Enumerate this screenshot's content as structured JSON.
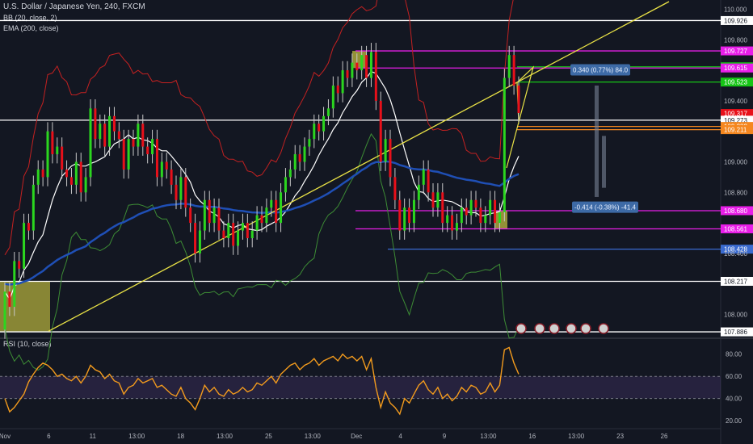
{
  "header": {
    "title": "U.S. Dollar / Japanese Yen, 240, FXCM",
    "bb_label": "BB (20, close, 2)",
    "ema_label": "EMA (200, close)",
    "rsi_label": "RSI (10, close)"
  },
  "colors": {
    "background": "#131722",
    "bull": "#2bd61f",
    "bear": "#e8101a",
    "bb_upper": "#c42121",
    "bb_lower": "#3d8c35",
    "bb_basis": "#ffffff",
    "ema": "#1f4fb5",
    "trend": "#e9e246",
    "magenta": "#e81ee8",
    "green_level": "#16c516",
    "orange_level": "#f5871f",
    "white_level": "#ffffff",
    "blue_level": "#3a6bd0",
    "rsi": "#f39b1d"
  },
  "chart_data": {
    "type": "candlestick",
    "symbol": "U.S. Dollar / Japanese Yen",
    "interval": "240",
    "source": "FXCM",
    "ylim": [
      107.86,
      110.05
    ],
    "price_ticks": [
      {
        "v": 110.0,
        "label": "110.000",
        "style": "plain"
      },
      {
        "v": 109.926,
        "label": "109.926",
        "style": "white"
      },
      {
        "v": 109.8,
        "label": "109.800",
        "style": "plain"
      },
      {
        "v": 109.727,
        "label": "109.727",
        "style": "magenta"
      },
      {
        "v": 109.623,
        "label": "109.623",
        "style": "green"
      },
      {
        "v": 109.615,
        "label": "109.615",
        "style": "magenta"
      },
      {
        "v": 109.523,
        "label": "109.523",
        "style": "green"
      },
      {
        "v": 109.4,
        "label": "109.400",
        "style": "plain"
      },
      {
        "v": 109.317,
        "label": "109.317",
        "style": "red"
      },
      {
        "v": 109.273,
        "label": "109.273",
        "style": "white"
      },
      {
        "v": 109.232,
        "label": "109.232",
        "style": "orange"
      },
      {
        "v": 109.211,
        "label": "109.211",
        "style": "orange"
      },
      {
        "v": 109.0,
        "label": "109.000",
        "style": "plain"
      },
      {
        "v": 108.8,
        "label": "108.800",
        "style": "plain"
      },
      {
        "v": 108.68,
        "label": "108.680",
        "style": "magenta"
      },
      {
        "v": 108.561,
        "label": "108.561",
        "style": "magenta"
      },
      {
        "v": 108.428,
        "label": "108.428",
        "style": "blue"
      },
      {
        "v": 108.4,
        "label": "108.400",
        "style": "plain"
      },
      {
        "v": 108.217,
        "label": "108.217",
        "style": "white"
      },
      {
        "v": 108.0,
        "label": "108.000",
        "style": "plain"
      },
      {
        "v": 107.886,
        "label": "107.886",
        "style": "white"
      }
    ],
    "x_ticks": [
      "Nov",
      "6",
      "11",
      "13:00",
      "18",
      "13:00",
      "25",
      "13:00",
      "Dec",
      "4",
      "9",
      "13:00",
      "16",
      "13:00",
      "23",
      "26"
    ],
    "horizontal_levels": [
      {
        "v": 109.926,
        "color": "white"
      },
      {
        "v": 109.727,
        "color": "magenta"
      },
      {
        "v": 109.623,
        "color": "green"
      },
      {
        "v": 109.615,
        "color": "magenta"
      },
      {
        "v": 109.523,
        "color": "green"
      },
      {
        "v": 109.273,
        "color": "white"
      },
      {
        "v": 109.232,
        "color": "orange"
      },
      {
        "v": 109.211,
        "color": "orange"
      },
      {
        "v": 108.68,
        "color": "magenta"
      },
      {
        "v": 108.561,
        "color": "magenta"
      },
      {
        "v": 108.428,
        "color": "blue"
      },
      {
        "v": 108.217,
        "color": "white"
      },
      {
        "v": 107.886,
        "color": "white"
      }
    ],
    "ranges": [
      {
        "label": "0.340 (0.77%) 84.0"
      },
      {
        "label": "-0.414 (-0.38%) -41.4"
      }
    ],
    "trendline": {
      "from": 107.89,
      "to": 110.05
    },
    "candles": [
      [
        107.9,
        108.15
      ],
      [
        108.15,
        108.05
      ],
      [
        108.05,
        108.35
      ],
      [
        108.35,
        108.3
      ],
      [
        108.3,
        108.6
      ],
      [
        108.6,
        108.55
      ],
      [
        108.55,
        108.85
      ],
      [
        108.85,
        108.95
      ],
      [
        108.95,
        108.9
      ],
      [
        108.9,
        109.2
      ],
      [
        109.2,
        109.05
      ],
      [
        109.05,
        109.1
      ],
      [
        109.1,
        108.95
      ],
      [
        108.95,
        108.9
      ],
      [
        108.9,
        108.85
      ],
      [
        108.85,
        109.0
      ],
      [
        109.0,
        108.8
      ],
      [
        108.8,
        108.9
      ],
      [
        108.9,
        109.35
      ],
      [
        109.35,
        109.15
      ],
      [
        109.15,
        109.25
      ],
      [
        109.25,
        109.1
      ],
      [
        109.1,
        109.3
      ],
      [
        109.3,
        109.2
      ],
      [
        109.2,
        109.15
      ],
      [
        109.15,
        108.95
      ],
      [
        108.95,
        109.15
      ],
      [
        109.15,
        109.1
      ],
      [
        109.1,
        109.25
      ],
      [
        109.25,
        109.1
      ],
      [
        109.1,
        109.05
      ],
      [
        109.05,
        109.15
      ],
      [
        109.15,
        108.9
      ],
      [
        108.9,
        109.0
      ],
      [
        109.0,
        108.95
      ],
      [
        108.95,
        108.85
      ],
      [
        108.85,
        108.75
      ],
      [
        108.75,
        108.9
      ],
      [
        108.9,
        108.7
      ],
      [
        108.7,
        108.6
      ],
      [
        108.6,
        108.4
      ],
      [
        108.4,
        108.55
      ],
      [
        108.55,
        108.75
      ],
      [
        108.75,
        108.6
      ],
      [
        108.6,
        108.7
      ],
      [
        108.7,
        108.55
      ],
      [
        108.55,
        108.5
      ],
      [
        108.5,
        108.6
      ],
      [
        108.6,
        108.45
      ],
      [
        108.45,
        108.55
      ],
      [
        108.55,
        108.6
      ],
      [
        108.6,
        108.5
      ],
      [
        108.5,
        108.55
      ],
      [
        108.55,
        108.65
      ],
      [
        108.65,
        108.6
      ],
      [
        108.6,
        108.7
      ],
      [
        108.7,
        108.75
      ],
      [
        108.75,
        108.6
      ],
      [
        108.6,
        108.8
      ],
      [
        108.8,
        108.9
      ],
      [
        108.9,
        108.95
      ],
      [
        108.95,
        109.05
      ],
      [
        109.05,
        109.0
      ],
      [
        109.0,
        109.1
      ],
      [
        109.1,
        109.15
      ],
      [
        109.15,
        109.25
      ],
      [
        109.25,
        109.2
      ],
      [
        109.2,
        109.3
      ],
      [
        109.3,
        109.35
      ],
      [
        109.35,
        109.5
      ],
      [
        109.5,
        109.45
      ],
      [
        109.45,
        109.6
      ],
      [
        109.6,
        109.55
      ],
      [
        109.55,
        109.65
      ],
      [
        109.65,
        109.6
      ],
      [
        109.6,
        109.7
      ],
      [
        109.7,
        109.55
      ],
      [
        109.55,
        109.72
      ],
      [
        109.72,
        109.4
      ],
      [
        109.4,
        109.0
      ],
      [
        109.0,
        109.15
      ],
      [
        109.15,
        108.9
      ],
      [
        108.9,
        108.75
      ],
      [
        108.75,
        108.55
      ],
      [
        108.55,
        108.7
      ],
      [
        108.7,
        108.6
      ],
      [
        108.6,
        108.75
      ],
      [
        108.75,
        108.85
      ],
      [
        108.85,
        108.95
      ],
      [
        108.95,
        108.8
      ],
      [
        108.8,
        108.7
      ],
      [
        108.7,
        108.8
      ],
      [
        108.8,
        108.6
      ],
      [
        108.6,
        108.65
      ],
      [
        108.65,
        108.55
      ],
      [
        108.55,
        108.6
      ],
      [
        108.6,
        108.7
      ],
      [
        108.7,
        108.65
      ],
      [
        108.65,
        108.75
      ],
      [
        108.75,
        108.7
      ],
      [
        108.7,
        108.6
      ],
      [
        108.6,
        108.65
      ],
      [
        108.65,
        108.75
      ],
      [
        108.75,
        108.6
      ],
      [
        108.6,
        108.67
      ],
      [
        108.67,
        109.55
      ],
      [
        109.55,
        109.7
      ],
      [
        109.7,
        109.5
      ],
      [
        109.5,
        109.32
      ]
    ],
    "rsi": {
      "ylim": [
        15,
        90
      ],
      "ticks": [
        {
          "v": 80,
          "label": "80.00"
        },
        {
          "v": 60,
          "label": "60.00"
        },
        {
          "v": 40,
          "label": "40.00"
        },
        {
          "v": 20,
          "label": "20.00"
        }
      ],
      "upper": 60,
      "lower": 40,
      "values": [
        40,
        28,
        32,
        38,
        44,
        55,
        62,
        68,
        72,
        70,
        66,
        60,
        62,
        58,
        56,
        60,
        54,
        60,
        70,
        66,
        64,
        58,
        62,
        56,
        54,
        44,
        50,
        52,
        58,
        54,
        56,
        58,
        50,
        52,
        48,
        44,
        42,
        50,
        40,
        36,
        30,
        40,
        52,
        46,
        50,
        44,
        42,
        48,
        44,
        46,
        50,
        46,
        48,
        54,
        52,
        56,
        60,
        54,
        62,
        66,
        70,
        72,
        66,
        70,
        72,
        76,
        70,
        74,
        76,
        78,
        74,
        80,
        76,
        78,
        74,
        78,
        66,
        76,
        50,
        32,
        46,
        36,
        32,
        26,
        40,
        36,
        44,
        52,
        56,
        48,
        44,
        50,
        40,
        44,
        38,
        42,
        50,
        46,
        52,
        50,
        44,
        46,
        54,
        46,
        52,
        84,
        86,
        72,
        62
      ]
    }
  }
}
